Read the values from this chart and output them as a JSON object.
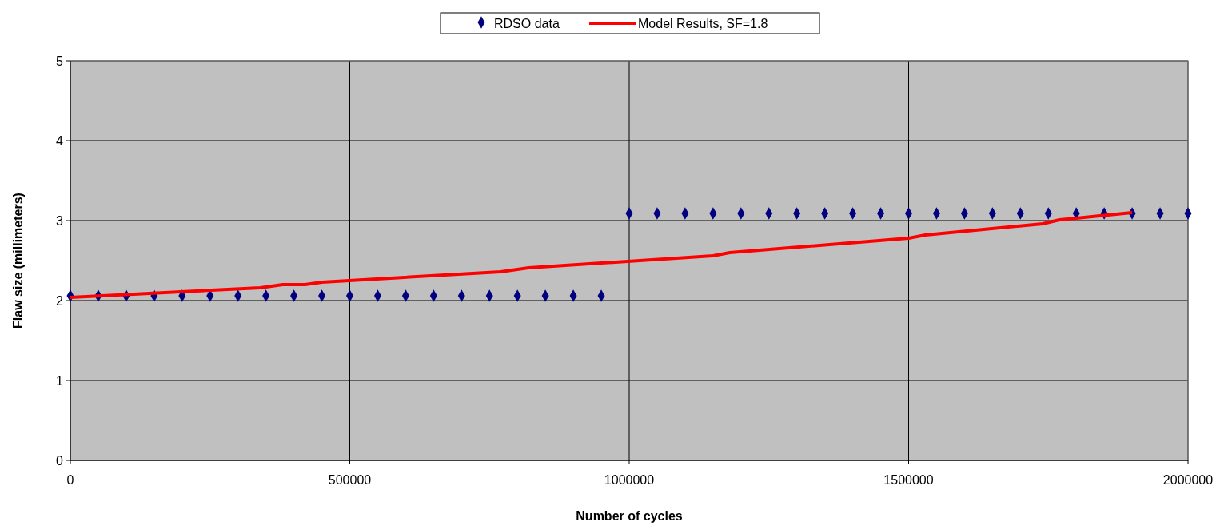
{
  "chart_data": {
    "type": "scatter",
    "xlabel": "Number of cycles",
    "ylabel": "Flaw size (millimeters)",
    "xlim": [
      0,
      2000000
    ],
    "xticks": [
      0,
      500000,
      1000000,
      1500000,
      2000000
    ],
    "ylim": [
      0,
      5
    ],
    "yticks": [
      0,
      1,
      2,
      3,
      4,
      5
    ],
    "grid": true,
    "legend": "top",
    "series": [
      {
        "name": "RDSO data",
        "type": "scatter",
        "marker": "diamond",
        "color": "#000080",
        "x": [
          0,
          50000,
          100000,
          150000,
          200000,
          250000,
          300000,
          350000,
          400000,
          450000,
          500000,
          550000,
          600000,
          650000,
          700000,
          750000,
          800000,
          850000,
          900000,
          950000,
          1000000,
          1050000,
          1100000,
          1150000,
          1200000,
          1250000,
          1300000,
          1350000,
          1400000,
          1450000,
          1500000,
          1550000,
          1600000,
          1650000,
          1700000,
          1750000,
          1800000,
          1850000,
          1900000,
          1950000,
          2000000
        ],
        "values": [
          2.06,
          2.06,
          2.06,
          2.06,
          2.06,
          2.06,
          2.06,
          2.06,
          2.06,
          2.06,
          2.06,
          2.06,
          2.06,
          2.06,
          2.06,
          2.06,
          2.06,
          2.06,
          2.06,
          2.06,
          3.09,
          3.09,
          3.09,
          3.09,
          3.09,
          3.09,
          3.09,
          3.09,
          3.09,
          3.09,
          3.09,
          3.09,
          3.09,
          3.09,
          3.09,
          3.09,
          3.09,
          3.09,
          3.09,
          3.09,
          3.09
        ]
      },
      {
        "name": "Model Results, SF=1.8",
        "type": "line",
        "marker": "none",
        "line_style": "solid",
        "color": "#ff0000",
        "x": [
          0,
          340000,
          380000,
          420000,
          450000,
          770000,
          820000,
          1150000,
          1180000,
          1500000,
          1530000,
          1740000,
          1770000,
          1800000,
          1900000
        ],
        "values": [
          2.04,
          2.16,
          2.2,
          2.2,
          2.23,
          2.36,
          2.41,
          2.56,
          2.6,
          2.78,
          2.82,
          2.96,
          3.01,
          3.03,
          3.1
        ]
      }
    ]
  }
}
